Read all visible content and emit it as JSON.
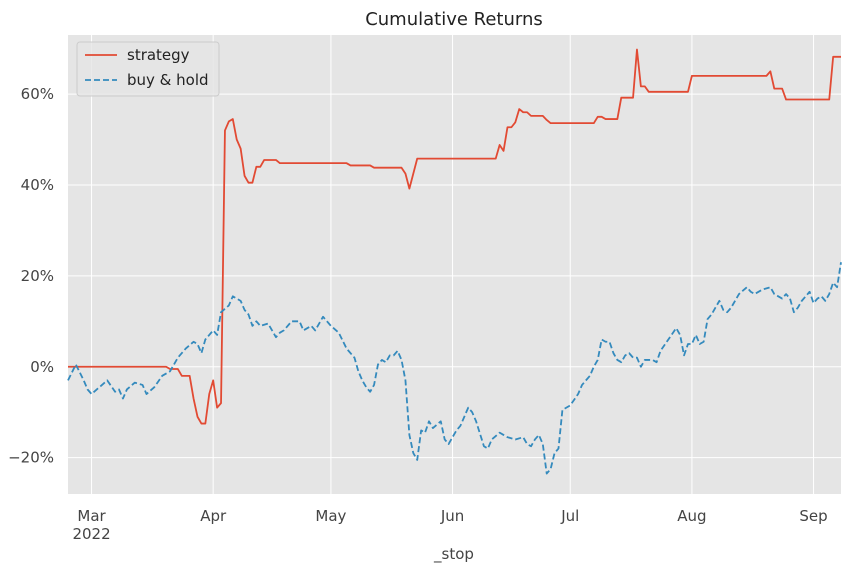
{
  "chart_data": {
    "type": "line",
    "title": "Cumulative Returns",
    "xlabel": "_stop",
    "ylabel": "",
    "x_range": [
      "2022-02-23",
      "2022-09-08"
    ],
    "ylim": [
      -28,
      73
    ],
    "grid": true,
    "legend_position": "top-left",
    "x_ticks": [
      {
        "date": "2022-03-01",
        "label": "Mar",
        "sublabel": "2022"
      },
      {
        "date": "2022-04-01",
        "label": "Apr",
        "sublabel": ""
      },
      {
        "date": "2022-05-01",
        "label": "May",
        "sublabel": ""
      },
      {
        "date": "2022-06-01",
        "label": "Jun",
        "sublabel": ""
      },
      {
        "date": "2022-07-01",
        "label": "Jul",
        "sublabel": ""
      },
      {
        "date": "2022-08-01",
        "label": "Aug",
        "sublabel": ""
      },
      {
        "date": "2022-09-01",
        "label": "Sep",
        "sublabel": ""
      }
    ],
    "y_ticks": [
      {
        "value": -20,
        "label": "−20%"
      },
      {
        "value": 0,
        "label": "0%"
      },
      {
        "value": 20,
        "label": "20%"
      },
      {
        "value": 40,
        "label": "40%"
      },
      {
        "value": 60,
        "label": "60%"
      }
    ],
    "series": [
      {
        "name": "strategy",
        "color": "#E24A33",
        "dash": "solid",
        "points": [
          [
            "2022-02-23",
            0
          ],
          [
            "2022-03-20",
            0
          ],
          [
            "2022-03-21",
            -0.5
          ],
          [
            "2022-03-23",
            -0.5
          ],
          [
            "2022-03-24",
            -2
          ],
          [
            "2022-03-26",
            -2
          ],
          [
            "2022-03-27",
            -7
          ],
          [
            "2022-03-28",
            -11
          ],
          [
            "2022-03-29",
            -12.5
          ],
          [
            "2022-03-30",
            -12.5
          ],
          [
            "2022-03-31",
            -6
          ],
          [
            "2022-04-01",
            -3
          ],
          [
            "2022-04-02",
            -9
          ],
          [
            "2022-04-03",
            -8
          ],
          [
            "2022-04-04",
            52
          ],
          [
            "2022-04-05",
            54
          ],
          [
            "2022-04-06",
            54.5
          ],
          [
            "2022-04-07",
            50
          ],
          [
            "2022-04-08",
            48
          ],
          [
            "2022-04-09",
            42
          ],
          [
            "2022-04-10",
            40.5
          ],
          [
            "2022-04-11",
            40.5
          ],
          [
            "2022-04-12",
            44
          ],
          [
            "2022-04-13",
            44
          ],
          [
            "2022-04-14",
            45.5
          ],
          [
            "2022-04-17",
            45.5
          ],
          [
            "2022-04-18",
            44.8
          ],
          [
            "2022-05-05",
            44.8
          ],
          [
            "2022-05-06",
            44.3
          ],
          [
            "2022-05-11",
            44.3
          ],
          [
            "2022-05-12",
            43.8
          ],
          [
            "2022-05-19",
            43.8
          ],
          [
            "2022-05-20",
            42.5
          ],
          [
            "2022-05-21",
            39.2
          ],
          [
            "2022-05-22",
            42.5
          ],
          [
            "2022-05-23",
            45.8
          ],
          [
            "2022-06-11",
            45.8
          ],
          [
            "2022-06-12",
            45.8
          ],
          [
            "2022-06-13",
            48.8
          ],
          [
            "2022-06-14",
            47.5
          ],
          [
            "2022-06-15",
            52.7
          ],
          [
            "2022-06-16",
            52.7
          ],
          [
            "2022-06-17",
            53.8
          ],
          [
            "2022-06-18",
            56.7
          ],
          [
            "2022-06-19",
            56
          ],
          [
            "2022-06-20",
            56
          ],
          [
            "2022-06-21",
            55.2
          ],
          [
            "2022-06-24",
            55.2
          ],
          [
            "2022-06-25",
            54.3
          ],
          [
            "2022-06-26",
            53.6
          ],
          [
            "2022-07-07",
            53.6
          ],
          [
            "2022-07-08",
            55
          ],
          [
            "2022-07-09",
            55
          ],
          [
            "2022-07-10",
            54.5
          ],
          [
            "2022-07-13",
            54.5
          ],
          [
            "2022-07-14",
            59.2
          ],
          [
            "2022-07-17",
            59.2
          ],
          [
            "2022-07-18",
            69.8
          ],
          [
            "2022-07-19",
            61.7
          ],
          [
            "2022-07-20",
            61.7
          ],
          [
            "2022-07-21",
            60.5
          ],
          [
            "2022-07-31",
            60.5
          ],
          [
            "2022-08-01",
            64
          ],
          [
            "2022-08-20",
            64
          ],
          [
            "2022-08-21",
            65
          ],
          [
            "2022-08-22",
            61.2
          ],
          [
            "2022-08-24",
            61.2
          ],
          [
            "2022-08-25",
            58.8
          ],
          [
            "2022-09-05",
            58.8
          ],
          [
            "2022-09-06",
            68.2
          ],
          [
            "2022-09-08",
            68.2
          ]
        ]
      },
      {
        "name": "buy & hold",
        "color": "#348ABD",
        "dash": "dashed",
        "points": [
          [
            "2022-02-23",
            -3
          ],
          [
            "2022-02-25",
            0.5
          ],
          [
            "2022-02-27",
            -3
          ],
          [
            "2022-02-28",
            -5
          ],
          [
            "2022-03-01",
            -6
          ],
          [
            "2022-03-03",
            -4.5
          ],
          [
            "2022-03-05",
            -3
          ],
          [
            "2022-03-07",
            -5.5
          ],
          [
            "2022-03-08",
            -5
          ],
          [
            "2022-03-09",
            -7
          ],
          [
            "2022-03-10",
            -5
          ],
          [
            "2022-03-12",
            -3.5
          ],
          [
            "2022-03-14",
            -4
          ],
          [
            "2022-03-15",
            -6
          ],
          [
            "2022-03-17",
            -4.5
          ],
          [
            "2022-03-19",
            -2
          ],
          [
            "2022-03-21",
            -1
          ],
          [
            "2022-03-23",
            2
          ],
          [
            "2022-03-25",
            4
          ],
          [
            "2022-03-27",
            5.5
          ],
          [
            "2022-03-28",
            5
          ],
          [
            "2022-03-29",
            3
          ],
          [
            "2022-03-30",
            6
          ],
          [
            "2022-04-01",
            8
          ],
          [
            "2022-04-02",
            7
          ],
          [
            "2022-04-03",
            12
          ],
          [
            "2022-04-05",
            13.5
          ],
          [
            "2022-04-06",
            15.5
          ],
          [
            "2022-04-08",
            14.5
          ],
          [
            "2022-04-09",
            12.5
          ],
          [
            "2022-04-10",
            11.5
          ],
          [
            "2022-04-11",
            9
          ],
          [
            "2022-04-12",
            10
          ],
          [
            "2022-04-13",
            9
          ],
          [
            "2022-04-15",
            9.5
          ],
          [
            "2022-04-17",
            6.5
          ],
          [
            "2022-04-18",
            7.5
          ],
          [
            "2022-04-19",
            8
          ],
          [
            "2022-04-21",
            10
          ],
          [
            "2022-04-23",
            10
          ],
          [
            "2022-04-24",
            8
          ],
          [
            "2022-04-26",
            9
          ],
          [
            "2022-04-27",
            8
          ],
          [
            "2022-04-28",
            9.5
          ],
          [
            "2022-04-29",
            11
          ],
          [
            "2022-05-01",
            9
          ],
          [
            "2022-05-03",
            7.5
          ],
          [
            "2022-05-05",
            4
          ],
          [
            "2022-05-07",
            2
          ],
          [
            "2022-05-08",
            -1
          ],
          [
            "2022-05-09",
            -3
          ],
          [
            "2022-05-10",
            -4.5
          ],
          [
            "2022-05-11",
            -5.5
          ],
          [
            "2022-05-12",
            -4
          ],
          [
            "2022-05-13",
            0.5
          ],
          [
            "2022-05-14",
            1.5
          ],
          [
            "2022-05-15",
            1
          ],
          [
            "2022-05-16",
            2.5
          ],
          [
            "2022-05-17",
            2.5
          ],
          [
            "2022-05-18",
            3.5
          ],
          [
            "2022-05-19",
            1.5
          ],
          [
            "2022-05-20",
            -3
          ],
          [
            "2022-05-21",
            -15
          ],
          [
            "2022-05-22",
            -19
          ],
          [
            "2022-05-23",
            -20.5
          ],
          [
            "2022-05-24",
            -14
          ],
          [
            "2022-05-25",
            -14.5
          ],
          [
            "2022-05-26",
            -12
          ],
          [
            "2022-05-27",
            -13.5
          ],
          [
            "2022-05-29",
            -12
          ],
          [
            "2022-05-30",
            -16
          ],
          [
            "2022-05-31",
            -17
          ],
          [
            "2022-06-02",
            -14
          ],
          [
            "2022-06-03",
            -13
          ],
          [
            "2022-06-04",
            -11
          ],
          [
            "2022-06-05",
            -9
          ],
          [
            "2022-06-06",
            -10
          ],
          [
            "2022-06-07",
            -12
          ],
          [
            "2022-06-09",
            -17.5
          ],
          [
            "2022-06-10",
            -18
          ],
          [
            "2022-06-11",
            -16
          ],
          [
            "2022-06-13",
            -14.5
          ],
          [
            "2022-06-14",
            -15
          ],
          [
            "2022-06-15",
            -15.5
          ],
          [
            "2022-06-17",
            -16
          ],
          [
            "2022-06-19",
            -15.5
          ],
          [
            "2022-06-20",
            -17
          ],
          [
            "2022-06-21",
            -17.5
          ],
          [
            "2022-06-22",
            -16
          ],
          [
            "2022-06-23",
            -15
          ],
          [
            "2022-06-24",
            -17
          ],
          [
            "2022-06-25",
            -23.5
          ],
          [
            "2022-06-26",
            -22.5
          ],
          [
            "2022-06-27",
            -19
          ],
          [
            "2022-06-28",
            -18
          ],
          [
            "2022-06-29",
            -9.5
          ],
          [
            "2022-07-01",
            -8.5
          ],
          [
            "2022-07-03",
            -6
          ],
          [
            "2022-07-04",
            -4
          ],
          [
            "2022-07-06",
            -2
          ],
          [
            "2022-07-07",
            0
          ],
          [
            "2022-07-08",
            1.5
          ],
          [
            "2022-07-09",
            6
          ],
          [
            "2022-07-10",
            5.5
          ],
          [
            "2022-07-11",
            5.5
          ],
          [
            "2022-07-12",
            3
          ],
          [
            "2022-07-13",
            1.5
          ],
          [
            "2022-07-14",
            1
          ],
          [
            "2022-07-15",
            2.5
          ],
          [
            "2022-07-16",
            3
          ],
          [
            "2022-07-17",
            2
          ],
          [
            "2022-07-18",
            2
          ],
          [
            "2022-07-19",
            0
          ],
          [
            "2022-07-20",
            1.5
          ],
          [
            "2022-07-22",
            1.5
          ],
          [
            "2022-07-23",
            1
          ],
          [
            "2022-07-24",
            3.5
          ],
          [
            "2022-07-26",
            6
          ],
          [
            "2022-07-28",
            8.5
          ],
          [
            "2022-07-29",
            7
          ],
          [
            "2022-07-30",
            2.5
          ],
          [
            "2022-07-31",
            5
          ],
          [
            "2022-08-01",
            5
          ],
          [
            "2022-08-02",
            7
          ],
          [
            "2022-08-03",
            5
          ],
          [
            "2022-08-04",
            5.5
          ],
          [
            "2022-08-05",
            10.5
          ],
          [
            "2022-08-06",
            11.5
          ],
          [
            "2022-08-08",
            14.5
          ],
          [
            "2022-08-09",
            12.5
          ],
          [
            "2022-08-10",
            12
          ],
          [
            "2022-08-11",
            13
          ],
          [
            "2022-08-13",
            16
          ],
          [
            "2022-08-15",
            17.5
          ],
          [
            "2022-08-16",
            16.5
          ],
          [
            "2022-08-17",
            16
          ],
          [
            "2022-08-19",
            17
          ],
          [
            "2022-08-21",
            17.5
          ],
          [
            "2022-08-22",
            16
          ],
          [
            "2022-08-24",
            15
          ],
          [
            "2022-08-25",
            16
          ],
          [
            "2022-08-26",
            15
          ],
          [
            "2022-08-27",
            12
          ],
          [
            "2022-08-28",
            13
          ],
          [
            "2022-08-29",
            14.5
          ],
          [
            "2022-08-30",
            15.5
          ],
          [
            "2022-08-31",
            16.5
          ],
          [
            "2022-09-01",
            14
          ],
          [
            "2022-09-02",
            15
          ],
          [
            "2022-09-03",
            15.5
          ],
          [
            "2022-09-04",
            14.5
          ],
          [
            "2022-09-05",
            16
          ],
          [
            "2022-09-06",
            18.5
          ],
          [
            "2022-09-07",
            17.5
          ],
          [
            "2022-09-08",
            23
          ]
        ]
      }
    ]
  }
}
